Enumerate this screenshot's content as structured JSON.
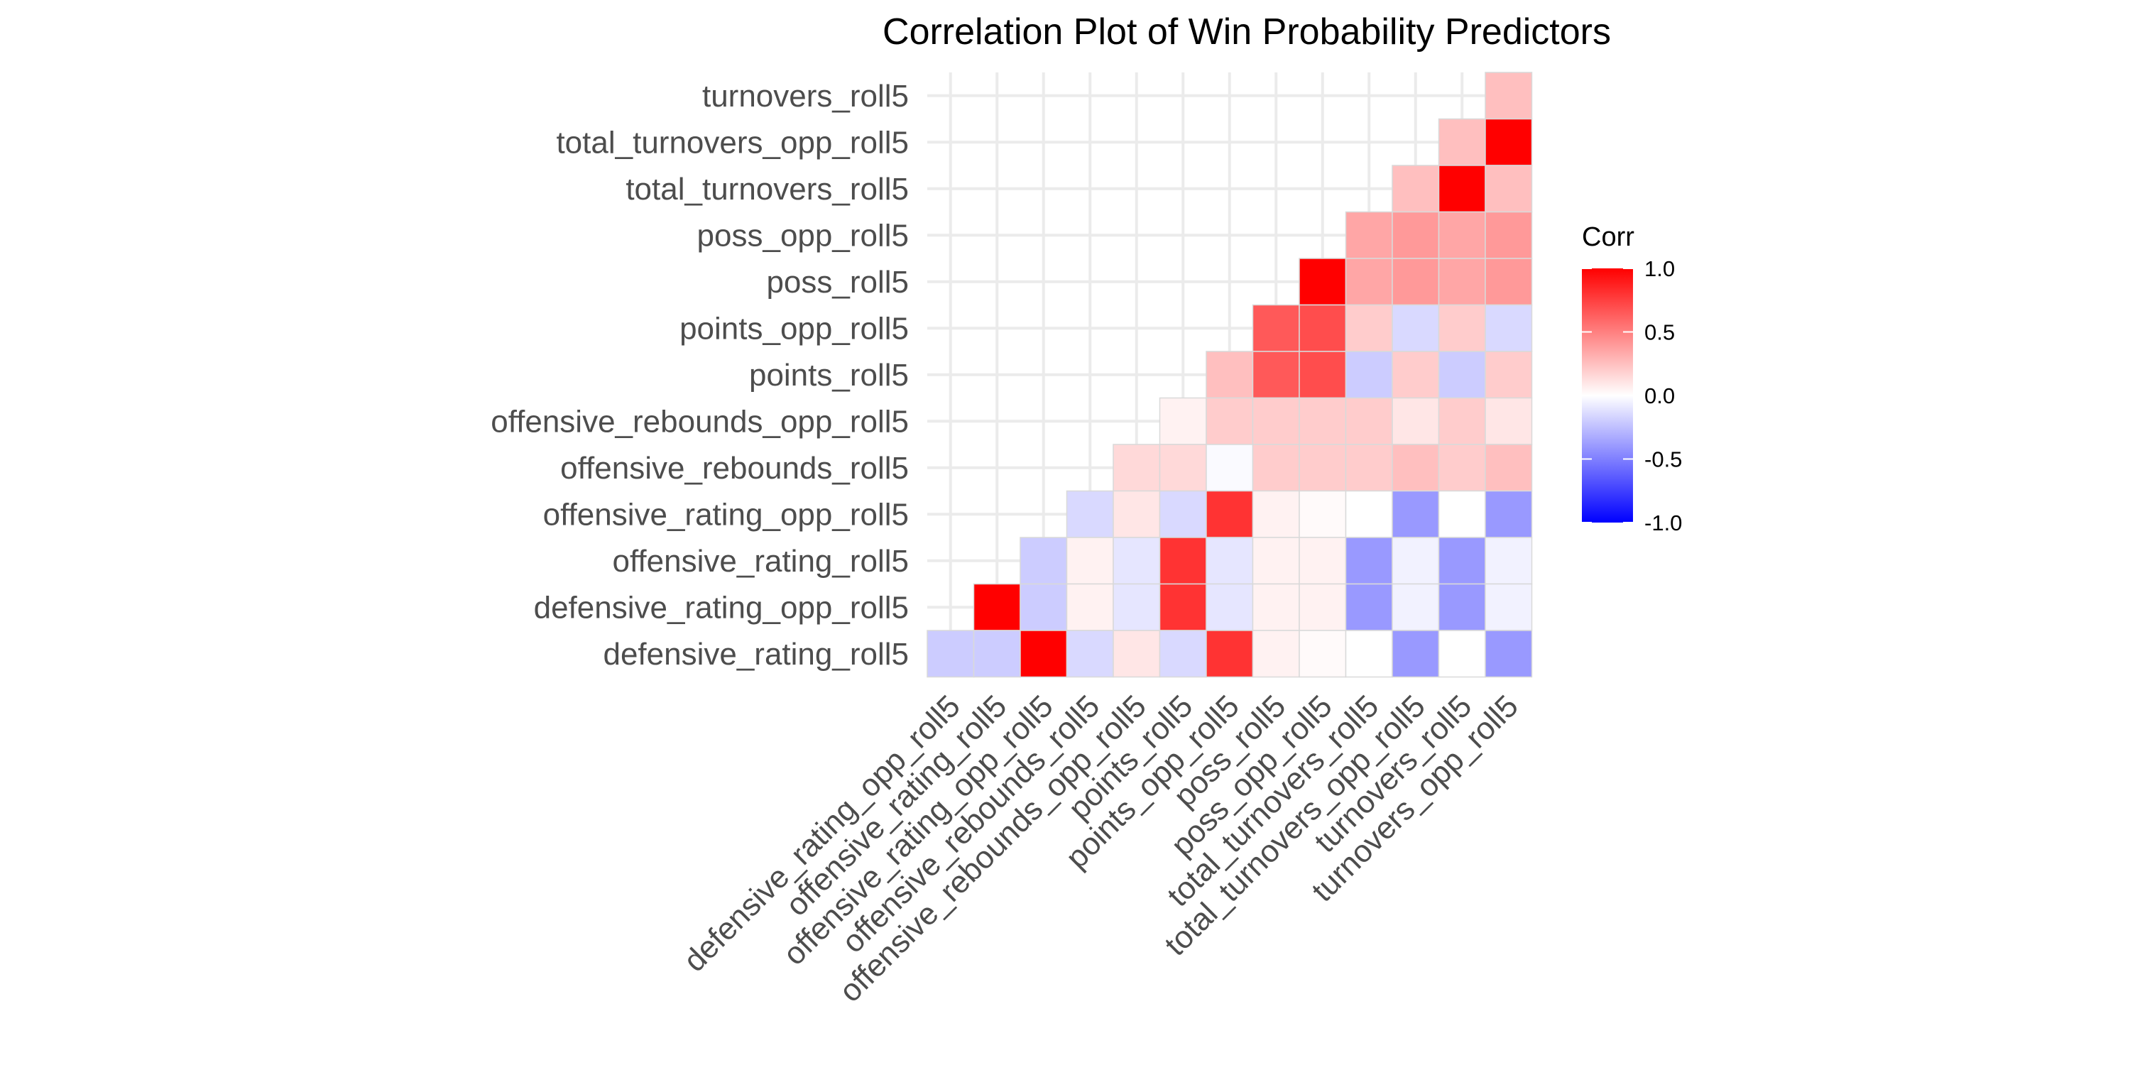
{
  "chart_data": {
    "type": "heatmap",
    "title": "Correlation Plot of Win Probability Predictors",
    "x_categories": [
      "defensive_rating_opp_roll5",
      "offensive_rating_roll5",
      "offensive_rating_opp_roll5",
      "offensive_rebounds_roll5",
      "offensive_rebounds_opp_roll5",
      "points_roll5",
      "points_opp_roll5",
      "poss_roll5",
      "poss_opp_roll5",
      "total_turnovers_roll5",
      "total_turnovers_opp_roll5",
      "turnovers_roll5",
      "turnovers_opp_roll5"
    ],
    "y_categories": [
      "turnovers_roll5",
      "total_turnovers_opp_roll5",
      "total_turnovers_roll5",
      "poss_opp_roll5",
      "poss_roll5",
      "points_opp_roll5",
      "points_roll5",
      "offensive_rebounds_opp_roll5",
      "offensive_rebounds_roll5",
      "offensive_rating_opp_roll5",
      "offensive_rating_roll5",
      "defensive_rating_opp_roll5",
      "defensive_rating_roll5"
    ],
    "values": [
      [
        null,
        null,
        null,
        null,
        null,
        null,
        null,
        null,
        null,
        null,
        null,
        null,
        0.25
      ],
      [
        null,
        null,
        null,
        null,
        null,
        null,
        null,
        null,
        null,
        null,
        null,
        0.25,
        1.0
      ],
      [
        null,
        null,
        null,
        null,
        null,
        null,
        null,
        null,
        null,
        null,
        0.25,
        1.0,
        0.25
      ],
      [
        null,
        null,
        null,
        null,
        null,
        null,
        null,
        null,
        null,
        0.35,
        0.4,
        0.35,
        0.4
      ],
      [
        null,
        null,
        null,
        null,
        null,
        null,
        null,
        null,
        1.0,
        0.35,
        0.4,
        0.35,
        0.4
      ],
      [
        null,
        null,
        null,
        null,
        null,
        null,
        null,
        0.65,
        0.7,
        0.2,
        -0.15,
        0.2,
        -0.15
      ],
      [
        null,
        null,
        null,
        null,
        null,
        null,
        0.25,
        0.65,
        0.7,
        -0.2,
        0.2,
        -0.2,
        0.2
      ],
      [
        null,
        null,
        null,
        null,
        null,
        0.05,
        0.2,
        0.2,
        0.2,
        0.2,
        0.1,
        0.2,
        0.1
      ],
      [
        null,
        null,
        null,
        null,
        0.15,
        0.15,
        -0.02,
        0.2,
        0.2,
        0.2,
        0.25,
        0.2,
        0.25
      ],
      [
        null,
        null,
        null,
        -0.15,
        0.1,
        -0.15,
        0.8,
        0.05,
        0.02,
        0.0,
        -0.4,
        0.0,
        -0.4
      ],
      [
        null,
        null,
        -0.2,
        0.05,
        -0.1,
        0.8,
        -0.1,
        0.05,
        0.05,
        -0.4,
        -0.05,
        -0.4,
        -0.05
      ],
      [
        null,
        1.0,
        -0.2,
        0.05,
        -0.1,
        0.8,
        -0.1,
        0.05,
        0.05,
        -0.4,
        -0.05,
        -0.4,
        -0.05
      ],
      [
        -0.2,
        -0.2,
        1.0,
        -0.15,
        0.1,
        -0.15,
        0.8,
        0.05,
        0.02,
        0.0,
        -0.4,
        0.0,
        -0.4
      ]
    ],
    "legend": {
      "title": "Corr",
      "ticks": [
        "1.0",
        "0.5",
        "0.0",
        "-0.5",
        "-1.0"
      ],
      "range": [
        -1,
        1
      ],
      "placement": "right",
      "low_color": "#0000ff",
      "mid_color": "#ffffff",
      "high_color": "#ff0000"
    },
    "grid": true
  }
}
